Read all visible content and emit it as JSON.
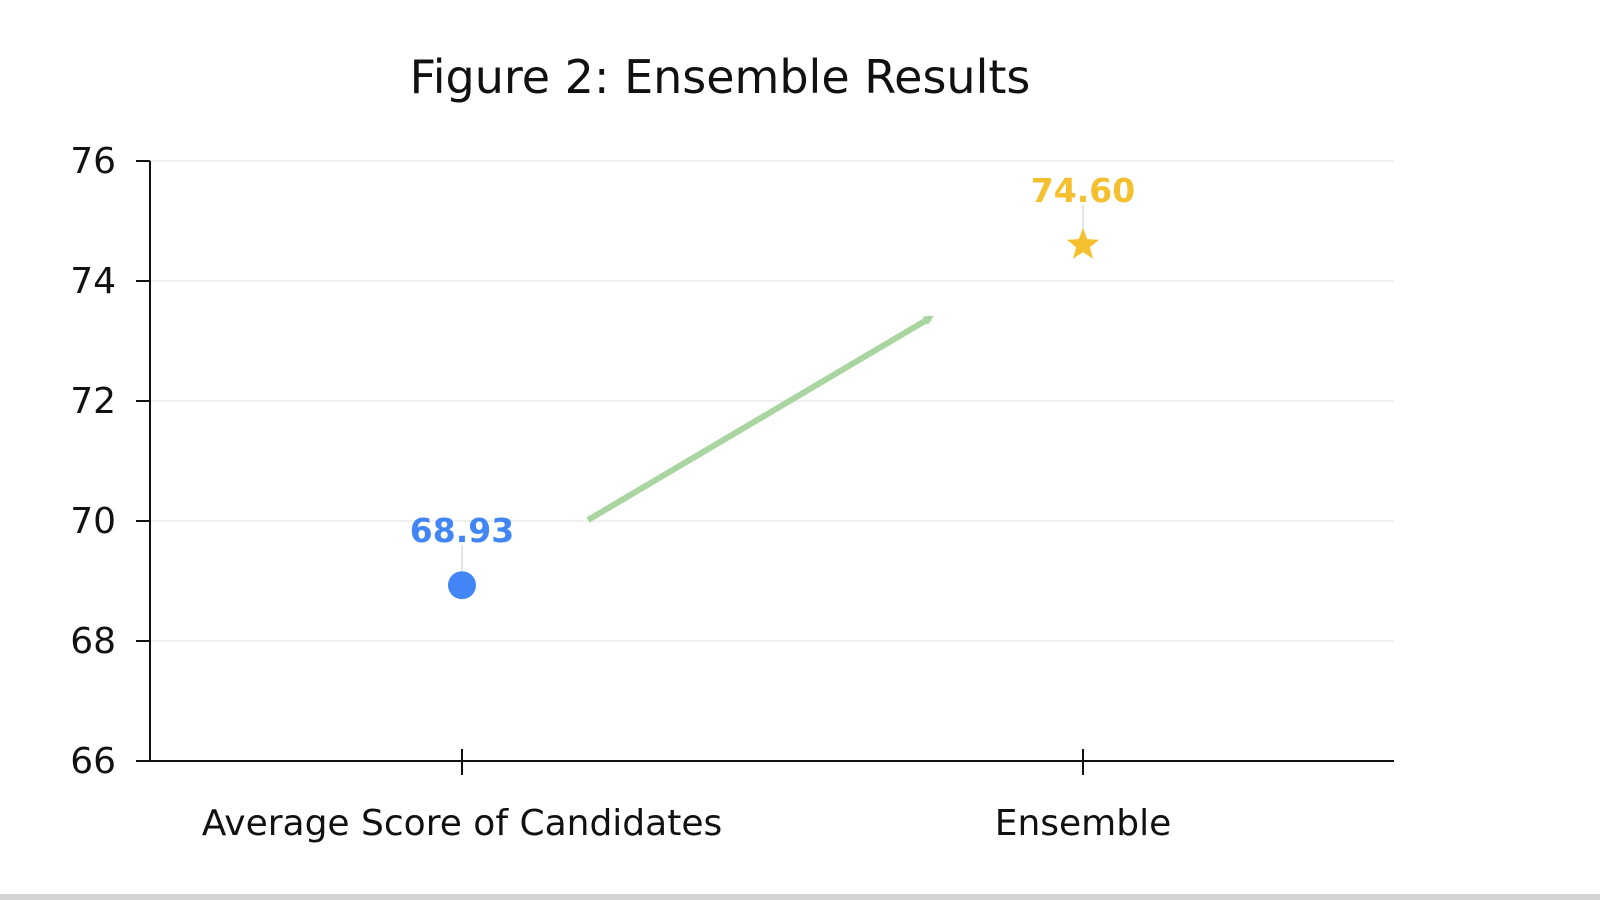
{
  "chart_data": {
    "type": "scatter",
    "title": "Figure 2: Ensemble Results",
    "xlabel": "",
    "ylabel": "",
    "categories": [
      "Average Score of Candidates",
      "Ensemble"
    ],
    "values": [
      68.93,
      74.6
    ],
    "data_labels": [
      "68.93",
      "74.60"
    ],
    "markers": [
      "circle",
      "star"
    ],
    "colors": [
      "#4285f4",
      "#f4c030"
    ],
    "ylim": [
      66,
      76
    ],
    "yticks": [
      66,
      68,
      70,
      72,
      74,
      76
    ],
    "grid": "horizontal",
    "annotation": {
      "type": "arrow",
      "from_category": "Average Score of Candidates",
      "to_category": "Ensemble",
      "color": "#a8d5a0"
    }
  }
}
